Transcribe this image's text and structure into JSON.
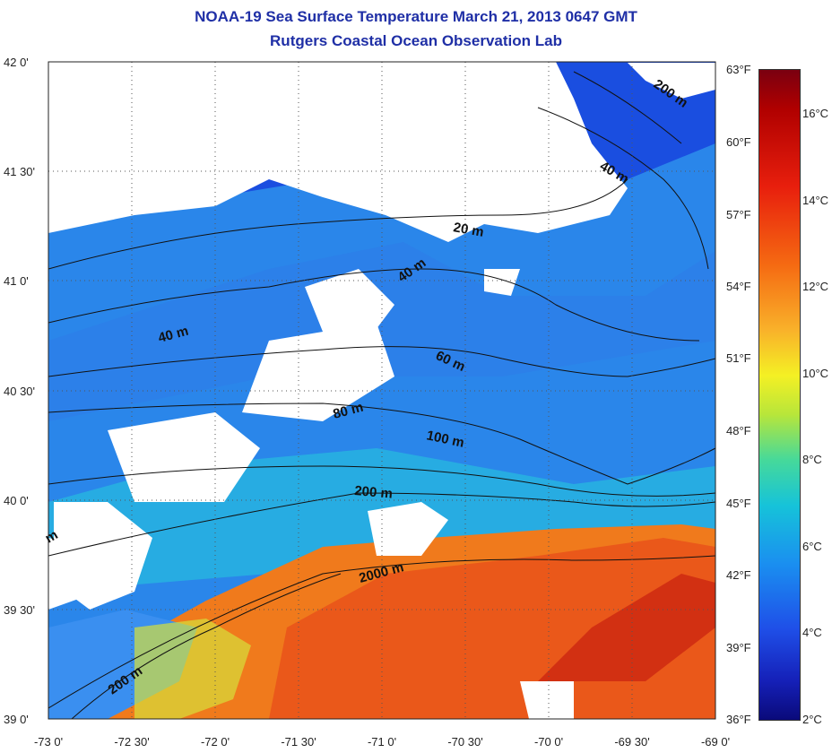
{
  "title_line1": "NOAA-19 Sea Surface Temperature March 21, 2013 0647 GMT",
  "title_line2": "Rutgers Coastal Ocean Observation Lab",
  "lat_labels": [
    "42 0'",
    "41 30'",
    "41 0'",
    "40 30'",
    "40 0'",
    "39 30'",
    "39 0'"
  ],
  "lon_labels": [
    "-73 0'",
    "-72 30'",
    "-72 0'",
    "-71 30'",
    "-71 0'",
    "-70 30'",
    "-70 0'",
    "-69 30'",
    "-69 0'"
  ],
  "fahrenheit_labels": [
    "63°F",
    "60°F",
    "57°F",
    "54°F",
    "51°F",
    "48°F",
    "45°F",
    "42°F",
    "39°F",
    "36°F"
  ],
  "celsius_labels": [
    "16°C",
    "14°C",
    "12°C",
    "10°C",
    "8°C",
    "6°C",
    "4°C",
    "2°C"
  ],
  "contour_labels": [
    "200 m",
    "40 m",
    "20 m",
    "40 m",
    "40 m",
    "60 m",
    "80 m",
    "100 m",
    "200 m",
    "2000 m",
    "200 m",
    "m"
  ],
  "colors": {
    "title": "#1f2fa6",
    "land": "#ffffff",
    "cold": "#1a1ab0",
    "cool": "#2f7fe8",
    "mid": "#27b8e0",
    "warm": "#f08020",
    "hot": "#e83010"
  }
}
